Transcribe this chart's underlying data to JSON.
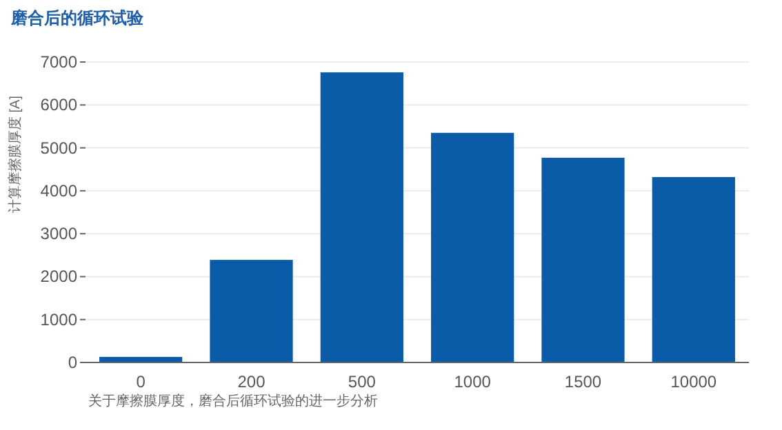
{
  "chart_data": {
    "type": "bar",
    "title": "磨合后的循环试验",
    "ylabel": "计算摩擦膜厚度 [A]",
    "annotations": [
      "关于摩擦膜厚度，磨合后循环试验的进一步分析"
    ],
    "categories": [
      "0",
      "200",
      "500",
      "1000",
      "1500",
      "10000"
    ],
    "values": [
      130,
      2390,
      6760,
      5350,
      4770,
      4320
    ],
    "color": "#0a5ca8",
    "ylim": [
      0,
      7000
    ],
    "yticks": [
      0,
      1000,
      2000,
      3000,
      4000,
      5000,
      6000,
      7000
    ],
    "grid": "y"
  }
}
